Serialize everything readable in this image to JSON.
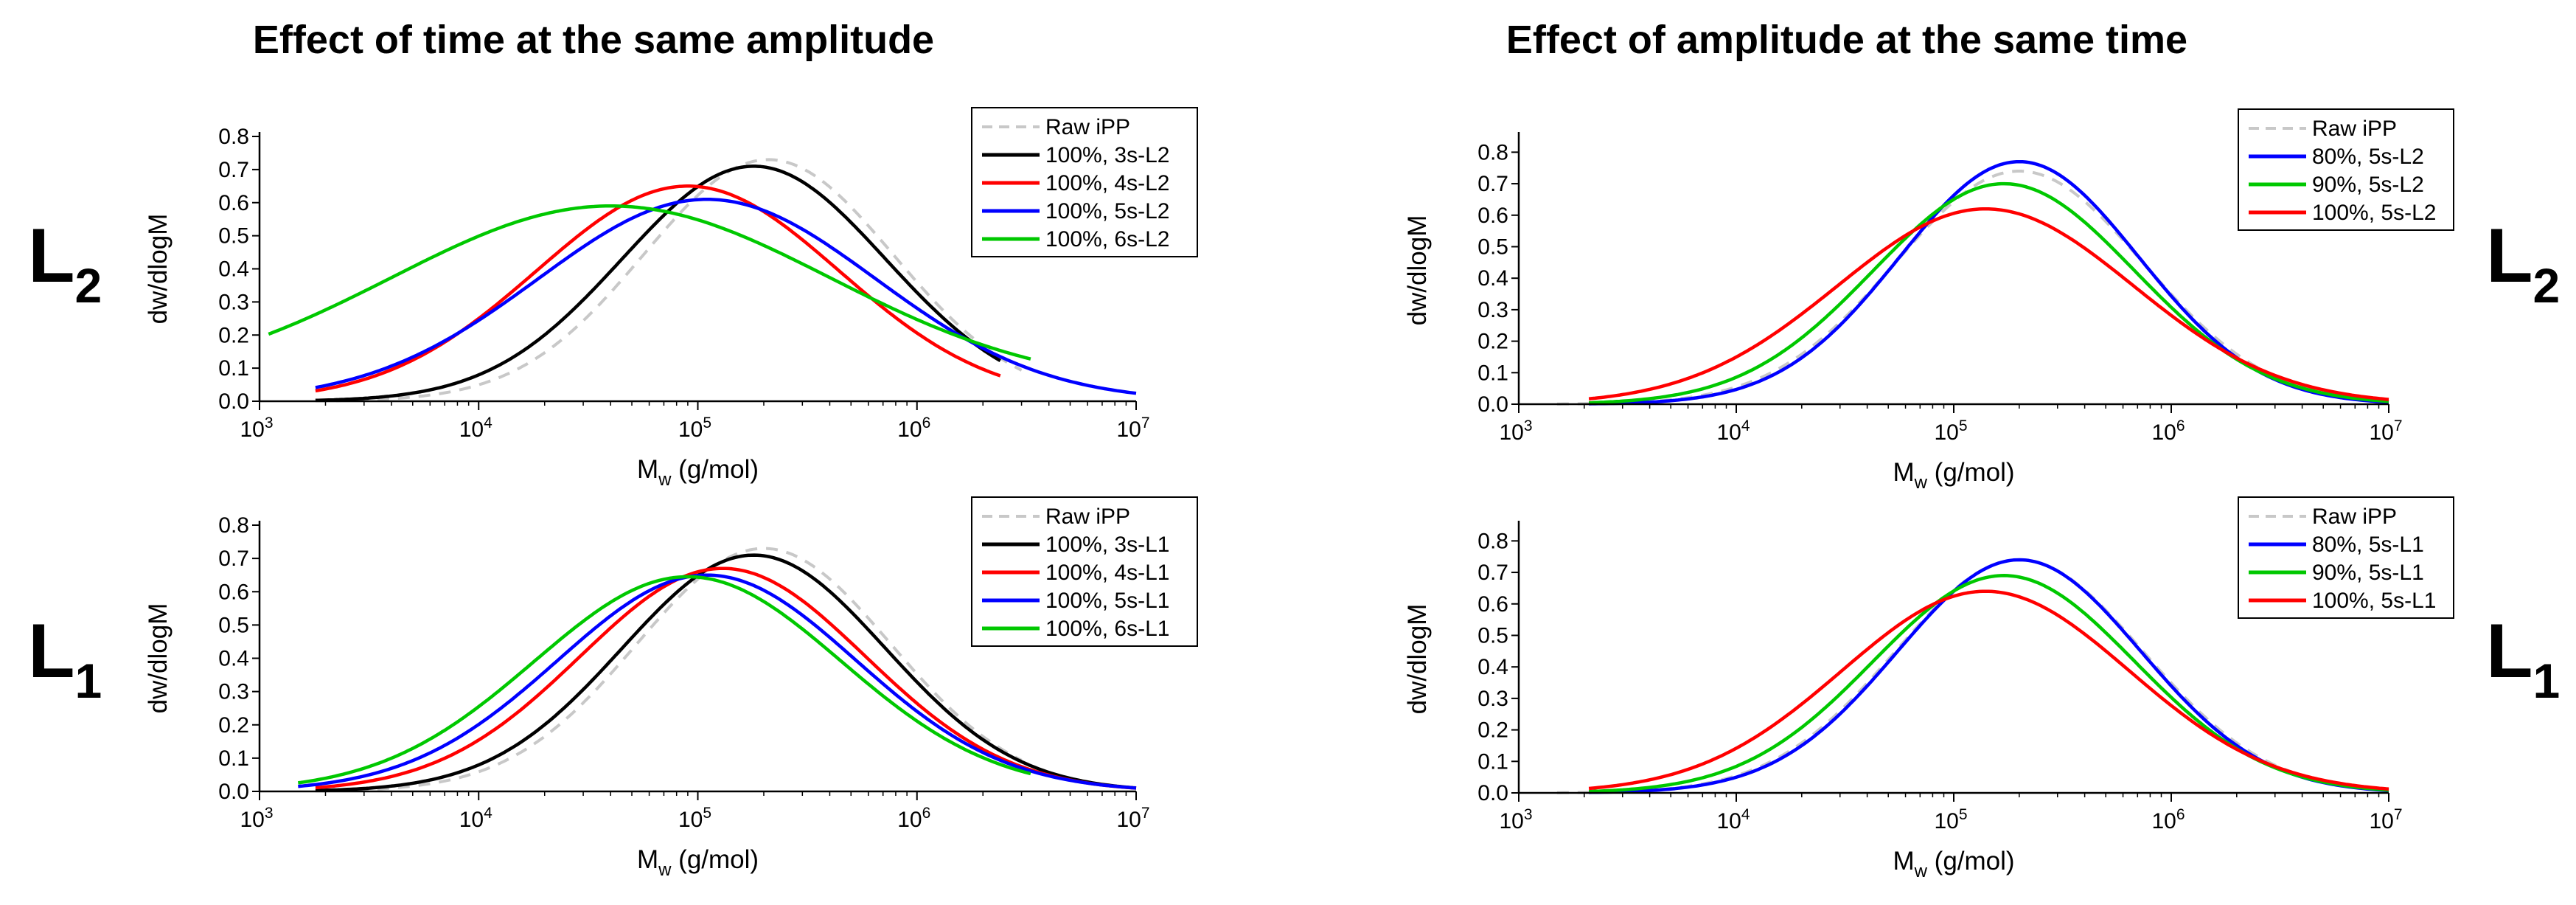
{
  "figure": {
    "titles": [
      "Effect of time at the same amplitude",
      "Effect of amplitude at the same time"
    ],
    "row_labels": [
      {
        "base": "L",
        "sub": "2"
      },
      {
        "base": "L",
        "sub": "1"
      }
    ]
  },
  "chart_data": [
    {
      "type": "line",
      "panel": "time-L2",
      "xscale": "log",
      "xlim": [
        1000,
        10000000
      ],
      "ylim": [
        0,
        0.8
      ],
      "yticks": [
        "0.0",
        "0.1",
        "0.2",
        "0.3",
        "0.4",
        "0.5",
        "0.6",
        "0.7",
        "0.8"
      ],
      "xticks": [
        {
          "base": "10",
          "exp": "3"
        },
        {
          "base": "10",
          "exp": "4"
        },
        {
          "base": "10",
          "exp": "5"
        },
        {
          "base": "10",
          "exp": "6"
        },
        {
          "base": "10",
          "exp": "7"
        }
      ],
      "xlabel": {
        "main": "M",
        "sub": "w",
        "rest": " (g/mol)"
      },
      "ylabel": "dw/dlogM",
      "legend_position": "top-right",
      "series": [
        {
          "name": "Raw iPP",
          "color": "#c8c8c8",
          "dash": true,
          "peak_x": 210000,
          "peak_y": 0.73,
          "sigma": 0.57,
          "xmin": 1800,
          "xmax": 3000000
        },
        {
          "name": "100%, 3s-L2",
          "color": "#000000",
          "dash": false,
          "peak_x": 180000,
          "peak_y": 0.71,
          "sigma": 0.6,
          "xmin": 1800,
          "xmax": 2400000
        },
        {
          "name": "100%, 4s-L2",
          "color": "#ff0000",
          "dash": false,
          "peak_x": 90000,
          "peak_y": 0.65,
          "sigma": 0.69,
          "xmin": 1800,
          "xmax": 2400000
        },
        {
          "name": "100%, 5s-L2",
          "color": "#0000ff",
          "dash": false,
          "peak_x": 110000,
          "peak_y": 0.61,
          "sigma": 0.77,
          "xmin": 1800,
          "xmax": 10000000
        },
        {
          "name": "100%, 6s-L2",
          "color": "#00c800",
          "dash": false,
          "peak_x": 40000,
          "peak_y": 0.59,
          "sigma": 1.0,
          "xmin": 1100,
          "xmax": 3300000,
          "floor": 0.04
        }
      ]
    },
    {
      "type": "line",
      "panel": "time-L1",
      "xscale": "log",
      "xlim": [
        1000,
        10000000
      ],
      "ylim": [
        0,
        0.8
      ],
      "yticks": [
        "0.0",
        "0.1",
        "0.2",
        "0.3",
        "0.4",
        "0.5",
        "0.6",
        "0.7",
        "0.8"
      ],
      "xticks": [
        {
          "base": "10",
          "exp": "3"
        },
        {
          "base": "10",
          "exp": "4"
        },
        {
          "base": "10",
          "exp": "5"
        },
        {
          "base": "10",
          "exp": "6"
        },
        {
          "base": "10",
          "exp": "7"
        }
      ],
      "xlabel": {
        "main": "M",
        "sub": "w",
        "rest": " (g/mol)"
      },
      "ylabel": "dw/dlogM",
      "legend_position": "top-right",
      "series": [
        {
          "name": "Raw iPP",
          "color": "#c8c8c8",
          "dash": true,
          "peak_x": 200000,
          "peak_y": 0.73,
          "sigma": 0.58,
          "xmin": 1800,
          "xmax": 3000000
        },
        {
          "name": "100%, 3s-L1",
          "color": "#000000",
          "dash": false,
          "peak_x": 180000,
          "peak_y": 0.71,
          "sigma": 0.6,
          "xmin": 1800,
          "xmax": 10000000
        },
        {
          "name": "100%, 4s-L1",
          "color": "#ff0000",
          "dash": false,
          "peak_x": 130000,
          "peak_y": 0.67,
          "sigma": 0.65,
          "xmin": 1800,
          "xmax": 10000000
        },
        {
          "name": "100%, 5s-L1",
          "color": "#0000ff",
          "dash": false,
          "peak_x": 110000,
          "peak_y": 0.65,
          "sigma": 0.68,
          "xmin": 1500,
          "xmax": 10000000
        },
        {
          "name": "100%, 6s-L1",
          "color": "#00c800",
          "dash": false,
          "peak_x": 90000,
          "peak_y": 0.645,
          "sigma": 0.7,
          "xmin": 1500,
          "xmax": 3300000
        }
      ]
    },
    {
      "type": "line",
      "panel": "amplitude-L2",
      "xscale": "log",
      "xlim": [
        1000,
        10000000
      ],
      "ylim": [
        0,
        0.85
      ],
      "yticks": [
        "0.0",
        "0.1",
        "0.2",
        "0.3",
        "0.4",
        "0.5",
        "0.6",
        "0.7",
        "0.8"
      ],
      "xticks": [
        {
          "base": "10",
          "exp": "3"
        },
        {
          "base": "10",
          "exp": "4"
        },
        {
          "base": "10",
          "exp": "5"
        },
        {
          "base": "10",
          "exp": "6"
        },
        {
          "base": "10",
          "exp": "7"
        }
      ],
      "xlabel": {
        "main": "M",
        "sub": "w",
        "rest": " (g/mol)"
      },
      "ylabel": "dw/dlogM",
      "legend_position": "top-right",
      "series": [
        {
          "name": "Raw iPP",
          "color": "#c8c8c8",
          "dash": true,
          "peak_x": 200000,
          "peak_y": 0.74,
          "sigma": 0.57,
          "xmin": 1500,
          "xmax": 10000000
        },
        {
          "name": "80%, 5s-L2",
          "color": "#0000ff",
          "dash": false,
          "peak_x": 200000,
          "peak_y": 0.77,
          "sigma": 0.55,
          "xmin": 2100,
          "xmax": 10000000
        },
        {
          "name": "90%, 5s-L2",
          "color": "#00c800",
          "dash": false,
          "peak_x": 170000,
          "peak_y": 0.7,
          "sigma": 0.6,
          "xmin": 2100,
          "xmax": 10000000
        },
        {
          "name": "100%, 5s-L2",
          "color": "#ff0000",
          "dash": false,
          "peak_x": 140000,
          "peak_y": 0.62,
          "sigma": 0.68,
          "xmin": 2100,
          "xmax": 10000000
        }
      ]
    },
    {
      "type": "line",
      "panel": "amplitude-L1",
      "xscale": "log",
      "xlim": [
        1000,
        10000000
      ],
      "ylim": [
        0,
        0.85
      ],
      "yticks": [
        "0.0",
        "0.1",
        "0.2",
        "0.3",
        "0.4",
        "0.5",
        "0.6",
        "0.7",
        "0.8"
      ],
      "xticks": [
        {
          "base": "10",
          "exp": "3"
        },
        {
          "base": "10",
          "exp": "4"
        },
        {
          "base": "10",
          "exp": "5"
        },
        {
          "base": "10",
          "exp": "6"
        },
        {
          "base": "10",
          "exp": "7"
        }
      ],
      "xlabel": {
        "main": "M",
        "sub": "w",
        "rest": " (g/mol)"
      },
      "ylabel": "dw/dlogM",
      "legend_position": "top-right",
      "series": [
        {
          "name": "Raw iPP",
          "color": "#c8c8c8",
          "dash": true,
          "peak_x": 200000,
          "peak_y": 0.74,
          "sigma": 0.57,
          "xmin": 1500,
          "xmax": 10000000
        },
        {
          "name": "80%, 5s-L1",
          "color": "#0000ff",
          "dash": false,
          "peak_x": 200000,
          "peak_y": 0.74,
          "sigma": 0.56,
          "xmin": 2100,
          "xmax": 10000000
        },
        {
          "name": "90%, 5s-L1",
          "color": "#00c800",
          "dash": false,
          "peak_x": 170000,
          "peak_y": 0.69,
          "sigma": 0.6,
          "xmin": 2100,
          "xmax": 10000000
        },
        {
          "name": "100%, 5s-L1",
          "color": "#ff0000",
          "dash": false,
          "peak_x": 140000,
          "peak_y": 0.64,
          "sigma": 0.66,
          "xmin": 2100,
          "xmax": 10000000
        }
      ]
    }
  ]
}
